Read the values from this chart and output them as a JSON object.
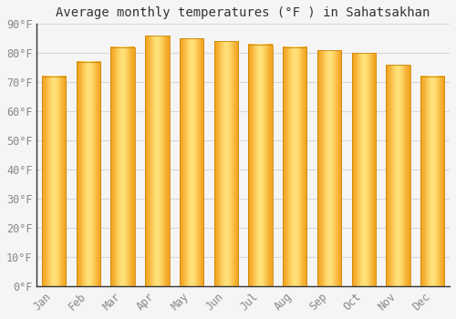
{
  "title": "Average monthly temperatures (°F ) in Sahatsakhan",
  "months": [
    "Jan",
    "Feb",
    "Mar",
    "Apr",
    "May",
    "Jun",
    "Jul",
    "Aug",
    "Sep",
    "Oct",
    "Nov",
    "Dec"
  ],
  "values": [
    72,
    77,
    82,
    86,
    85,
    84,
    83,
    82,
    81,
    80,
    76,
    72
  ],
  "bar_color_left": "#F5A623",
  "bar_color_center": "#FFD060",
  "bar_color_right": "#F5A623",
  "bar_edge_color": "#C8880A",
  "ylim": [
    0,
    90
  ],
  "yticks": [
    0,
    10,
    20,
    30,
    40,
    50,
    60,
    70,
    80,
    90
  ],
  "ytick_labels": [
    "0°F",
    "10°F",
    "20°F",
    "30°F",
    "40°F",
    "50°F",
    "60°F",
    "70°F",
    "80°F",
    "90°F"
  ],
  "background_color": "#f5f5f5",
  "plot_bg_color": "#f5f5f5",
  "grid_color": "#d8d8d8",
  "title_fontsize": 10,
  "tick_fontsize": 8.5,
  "bar_width": 0.7,
  "spine_color": "#333333"
}
